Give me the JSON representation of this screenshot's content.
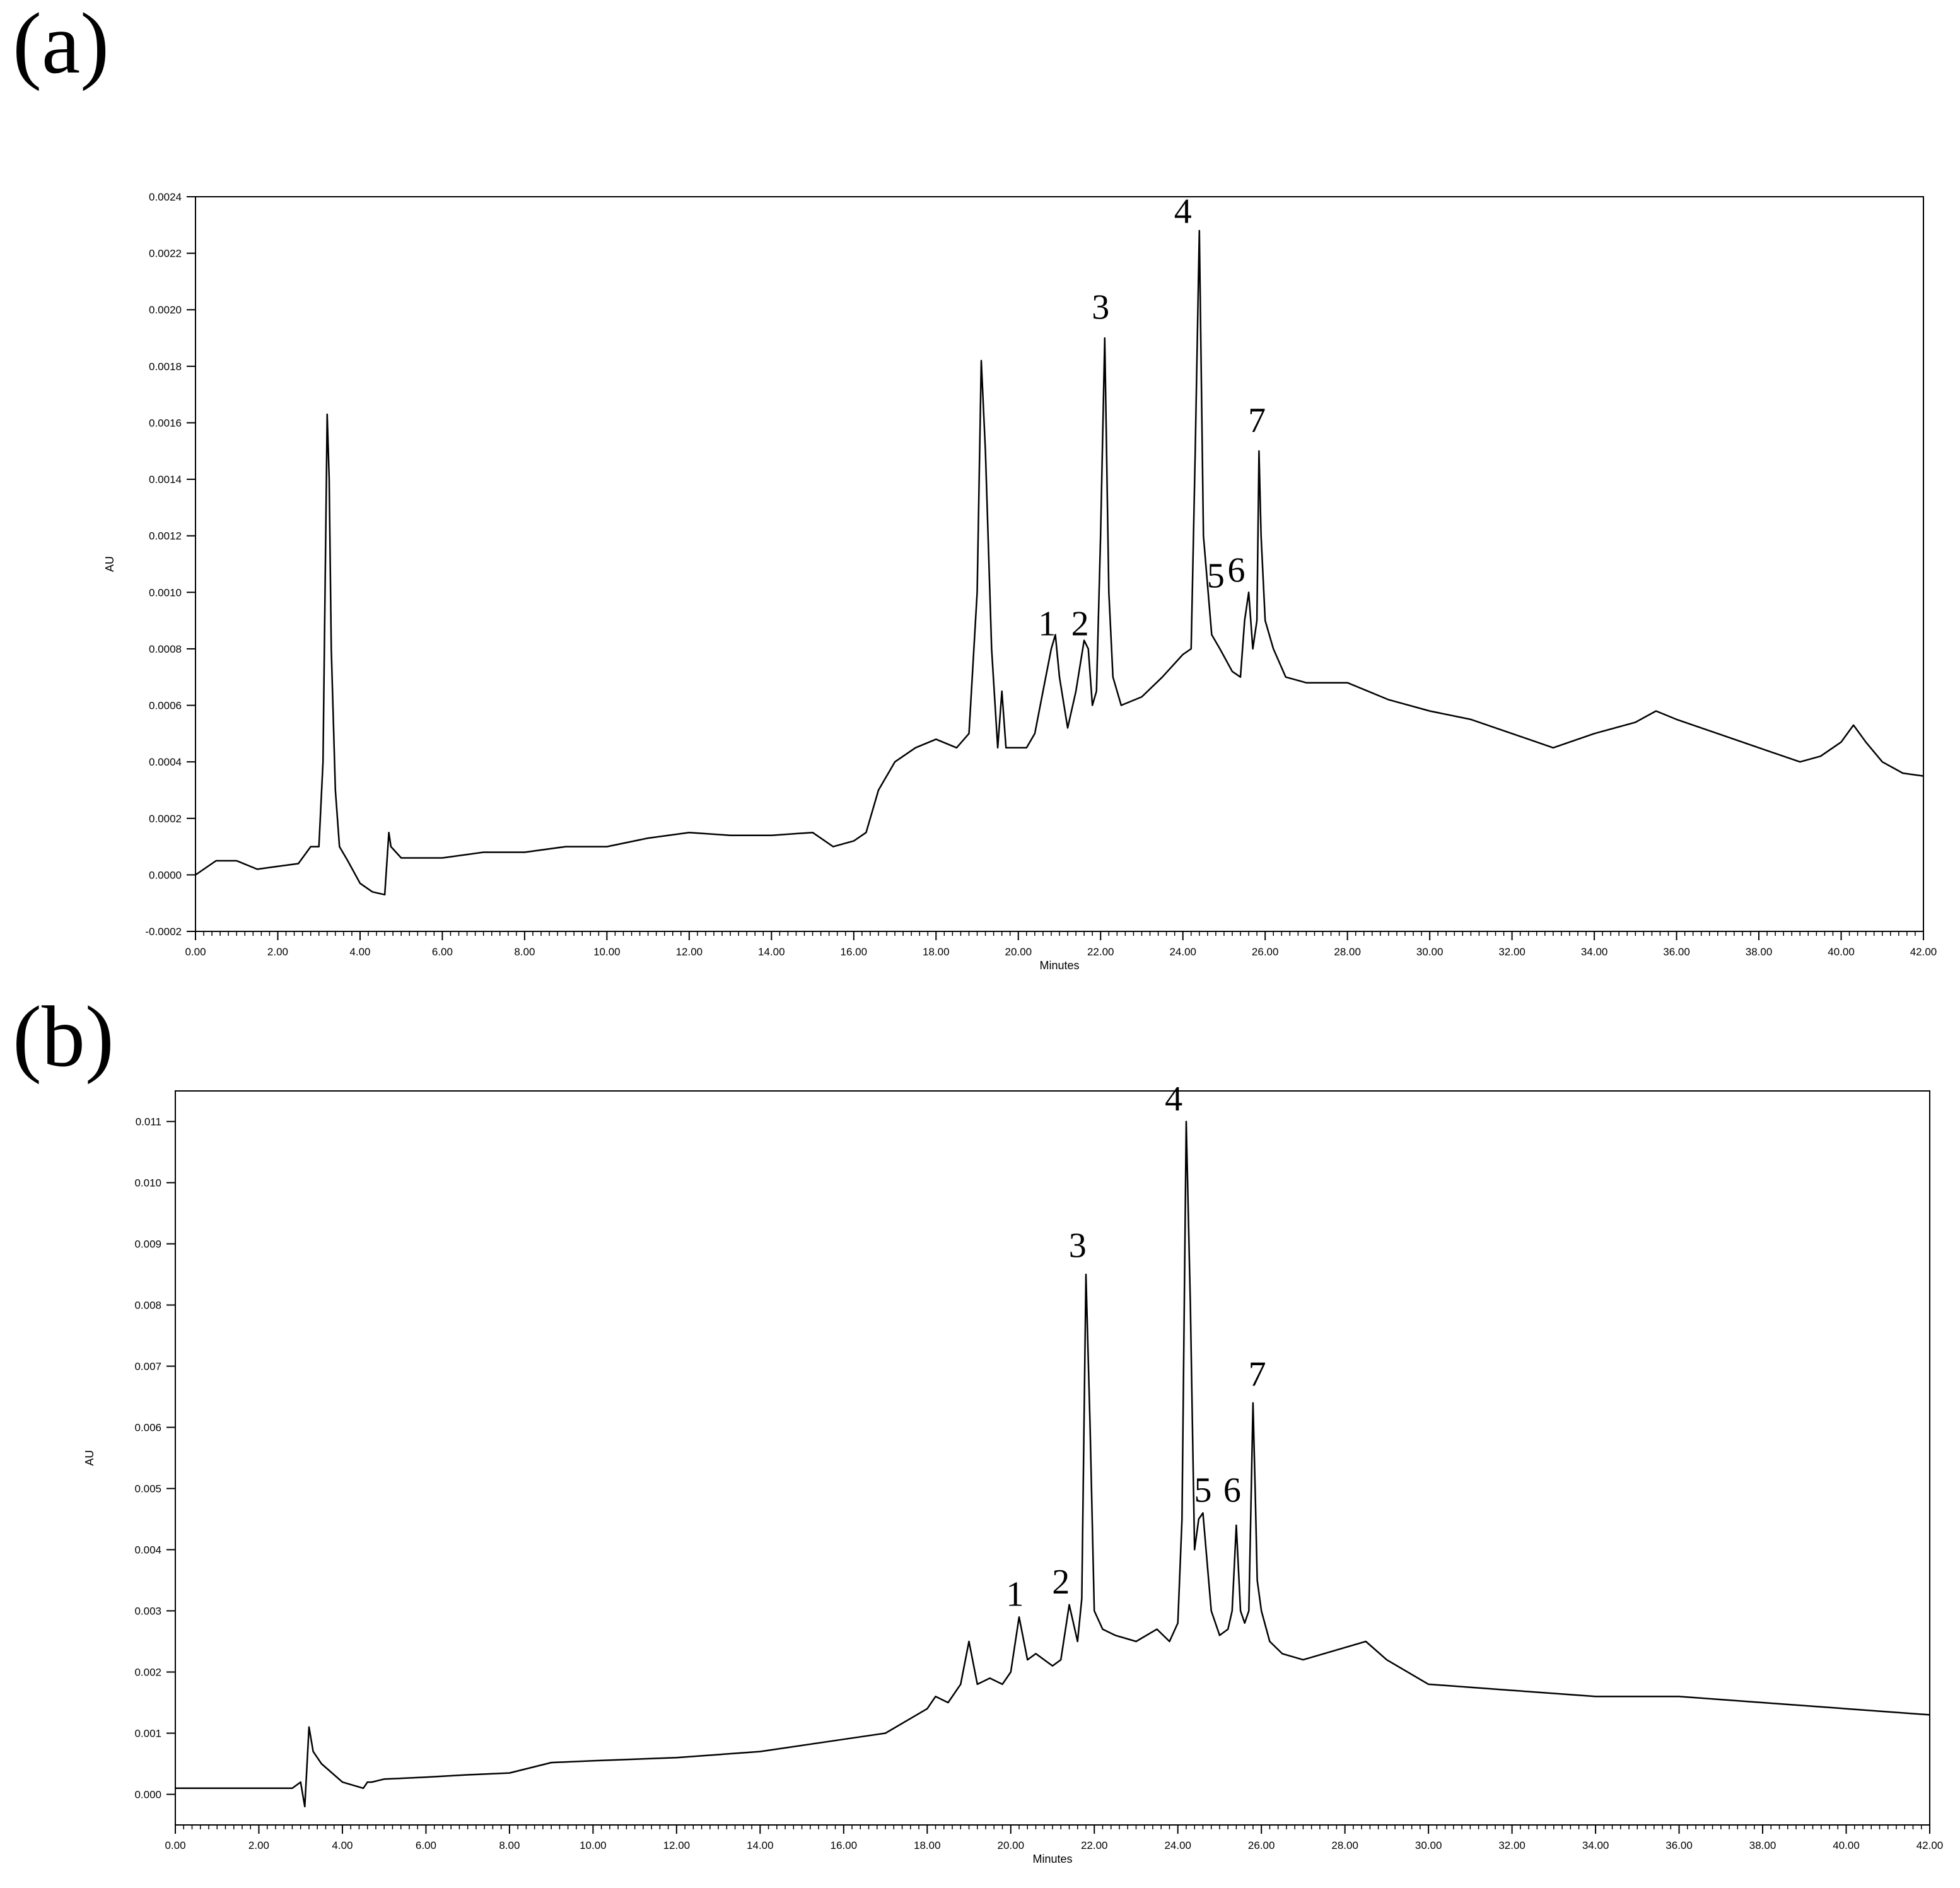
{
  "panels": [
    {
      "label": "(a)"
    },
    {
      "label": "(b)"
    }
  ],
  "chart_data": [
    {
      "type": "line",
      "panel": "(a)",
      "xlabel": "Minutes",
      "ylabel": "AU",
      "xlim": [
        0,
        42
      ],
      "ylim": [
        -0.0002,
        0.0024
      ],
      "x_ticks": [
        "0.00",
        "2.00",
        "4.00",
        "6.00",
        "8.00",
        "10.00",
        "12.00",
        "14.00",
        "16.00",
        "18.00",
        "20.00",
        "22.00",
        "24.00",
        "26.00",
        "28.00",
        "30.00",
        "32.00",
        "34.00",
        "36.00",
        "38.00",
        "40.00",
        "42.00"
      ],
      "y_ticks": [
        "-0.0002",
        "0.0000",
        "0.0002",
        "0.0004",
        "0.0006",
        "0.0008",
        "0.0010",
        "0.0012",
        "0.0014",
        "0.0016",
        "0.0018",
        "0.0020",
        "0.0022",
        "0.0024"
      ],
      "series": [
        {
          "color": "#000000",
          "x": [
            0,
            0.5,
            1,
            1.5,
            2,
            2.5,
            2.8,
            3.0,
            3.1,
            3.2,
            3.25,
            3.3,
            3.4,
            3.5,
            3.7,
            4.0,
            4.3,
            4.6,
            4.7,
            4.75,
            5.0,
            6,
            7,
            8,
            9,
            10,
            11,
            12,
            13,
            14,
            15,
            15.5,
            16,
            16.3,
            16.6,
            17,
            17.5,
            18,
            18.5,
            18.8,
            19.0,
            19.1,
            19.2,
            19.35,
            19.5,
            19.6,
            19.7,
            19.9,
            20.2,
            20.4,
            20.6,
            20.8,
            20.9,
            21.0,
            21.2,
            21.4,
            21.6,
            21.7,
            21.8,
            21.9,
            22.0,
            22.1,
            22.2,
            22.3,
            22.5,
            23,
            23.5,
            24.0,
            24.2,
            24.3,
            24.4,
            24.5,
            24.7,
            24.9,
            25.2,
            25.4,
            25.5,
            25.6,
            25.7,
            25.8,
            25.85,
            25.9,
            26.0,
            26.2,
            26.5,
            27,
            28,
            29,
            30,
            31,
            32,
            33,
            34,
            35,
            35.5,
            36,
            37,
            38,
            39,
            39.5,
            40,
            40.3,
            40.6,
            41,
            41.5,
            42
          ],
          "y": [
            0.0,
            5e-05,
            5e-05,
            2e-05,
            3e-05,
            4e-05,
            0.0001,
            0.0001,
            0.0004,
            0.00163,
            0.0014,
            0.0008,
            0.0003,
            0.0001,
            5e-05,
            -3e-05,
            -6e-05,
            -7e-05,
            0.00015,
            0.0001,
            6e-05,
            6e-05,
            8e-05,
            8e-05,
            0.0001,
            0.0001,
            0.00013,
            0.00015,
            0.00014,
            0.00014,
            0.00015,
            0.0001,
            0.00012,
            0.00015,
            0.0003,
            0.0004,
            0.00045,
            0.00048,
            0.00045,
            0.0005,
            0.001,
            0.00182,
            0.0015,
            0.0008,
            0.00045,
            0.00065,
            0.00045,
            0.00045,
            0.00045,
            0.0005,
            0.00065,
            0.0008,
            0.00085,
            0.0007,
            0.00052,
            0.00065,
            0.00083,
            0.0008,
            0.0006,
            0.00065,
            0.0012,
            0.0019,
            0.001,
            0.0007,
            0.0006,
            0.00063,
            0.0007,
            0.00078,
            0.0008,
            0.0015,
            0.00228,
            0.0012,
            0.00085,
            0.0008,
            0.00072,
            0.0007,
            0.0009,
            0.001,
            0.0008,
            0.0009,
            0.0015,
            0.0012,
            0.0009,
            0.0008,
            0.0007,
            0.00068,
            0.00068,
            0.00062,
            0.00058,
            0.00055,
            0.0005,
            0.00045,
            0.0005,
            0.00054,
            0.00058,
            0.00055,
            0.0005,
            0.00045,
            0.0004,
            0.00042,
            0.00047,
            0.00053,
            0.00047,
            0.0004,
            0.00036,
            0.00035
          ]
        }
      ],
      "annotations": [
        {
          "text": "1",
          "x": 20.7,
          "y": 0.00083
        },
        {
          "text": "2",
          "x": 21.5,
          "y": 0.00083
        },
        {
          "text": "3",
          "x": 22.0,
          "y": 0.00195
        },
        {
          "text": "4",
          "x": 24.0,
          "y": 0.00229
        },
        {
          "text": "5",
          "x": 24.8,
          "y": 0.001
        },
        {
          "text": "6",
          "x": 25.3,
          "y": 0.00102
        },
        {
          "text": "7",
          "x": 25.8,
          "y": 0.00155
        }
      ]
    },
    {
      "type": "line",
      "panel": "(b)",
      "xlabel": "Minutes",
      "ylabel": "AU",
      "xlim": [
        0,
        42
      ],
      "ylim": [
        -0.0005,
        0.0115
      ],
      "x_ticks": [
        "0.00",
        "2.00",
        "4.00",
        "6.00",
        "8.00",
        "10.00",
        "12.00",
        "14.00",
        "16.00",
        "18.00",
        "20.00",
        "22.00",
        "24.00",
        "26.00",
        "28.00",
        "30.00",
        "32.00",
        "34.00",
        "36.00",
        "38.00",
        "40.00",
        "42.00"
      ],
      "y_ticks": [
        "0.000",
        "0.001",
        "0.002",
        "0.003",
        "0.004",
        "0.005",
        "0.006",
        "0.007",
        "0.008",
        "0.009",
        "0.010",
        "0.011"
      ],
      "y_tick_values": [
        0,
        0.001,
        0.002,
        0.003,
        0.004,
        0.005,
        0.006,
        0.007,
        0.008,
        0.009,
        0.01,
        0.011
      ],
      "series": [
        {
          "color": "#000000",
          "x": [
            0,
            1,
            2,
            2.8,
            3.0,
            3.1,
            3.2,
            3.3,
            3.5,
            4.0,
            4.5,
            4.6,
            4.7,
            5,
            6,
            7,
            8,
            9,
            10,
            12,
            14,
            16,
            17,
            17.5,
            18,
            18.2,
            18.5,
            18.8,
            19.0,
            19.2,
            19.5,
            19.8,
            20.0,
            20.2,
            20.4,
            20.6,
            20.8,
            21.0,
            21.2,
            21.4,
            21.6,
            21.7,
            21.8,
            21.9,
            22.0,
            22.2,
            22.5,
            23,
            23.5,
            23.8,
            24.0,
            24.1,
            24.2,
            24.3,
            24.4,
            24.5,
            24.6,
            24.8,
            25.0,
            25.2,
            25.3,
            25.4,
            25.5,
            25.6,
            25.7,
            25.8,
            25.85,
            25.9,
            26.0,
            26.2,
            26.5,
            27,
            28,
            28.5,
            29,
            30,
            32,
            34,
            36,
            38,
            40,
            42
          ],
          "y": [
            0.0001,
            0.0001,
            0.0001,
            0.0001,
            0.0002,
            -0.0002,
            0.0011,
            0.0007,
            0.0005,
            0.0002,
            0.0001,
            0.0002,
            0.0002,
            0.00025,
            0.00028,
            0.00032,
            0.00035,
            0.00052,
            0.00055,
            0.0006,
            0.0007,
            0.0009,
            0.001,
            0.0012,
            0.0014,
            0.0016,
            0.0015,
            0.0018,
            0.0025,
            0.0018,
            0.0019,
            0.0018,
            0.002,
            0.0029,
            0.0022,
            0.0023,
            0.0022,
            0.0021,
            0.0022,
            0.0031,
            0.0025,
            0.0032,
            0.0085,
            0.006,
            0.003,
            0.0027,
            0.0026,
            0.0025,
            0.0027,
            0.0025,
            0.0028,
            0.0045,
            0.011,
            0.008,
            0.004,
            0.0045,
            0.0046,
            0.003,
            0.0026,
            0.0027,
            0.003,
            0.0044,
            0.003,
            0.0028,
            0.003,
            0.0064,
            0.005,
            0.0035,
            0.003,
            0.0025,
            0.0023,
            0.0022,
            0.0024,
            0.0025,
            0.0022,
            0.0018,
            0.0017,
            0.0016,
            0.0016,
            0.0015,
            0.0014,
            0.0013
          ]
        }
      ],
      "annotations": [
        {
          "text": "1",
          "x": 20.1,
          "y": 0.003
        },
        {
          "text": "2",
          "x": 21.2,
          "y": 0.0032
        },
        {
          "text": "3",
          "x": 21.6,
          "y": 0.0087
        },
        {
          "text": "4",
          "x": 23.9,
          "y": 0.0111
        },
        {
          "text": "5",
          "x": 24.6,
          "y": 0.0047
        },
        {
          "text": "6",
          "x": 25.3,
          "y": 0.0047
        },
        {
          "text": "7",
          "x": 25.9,
          "y": 0.0066
        }
      ]
    }
  ]
}
